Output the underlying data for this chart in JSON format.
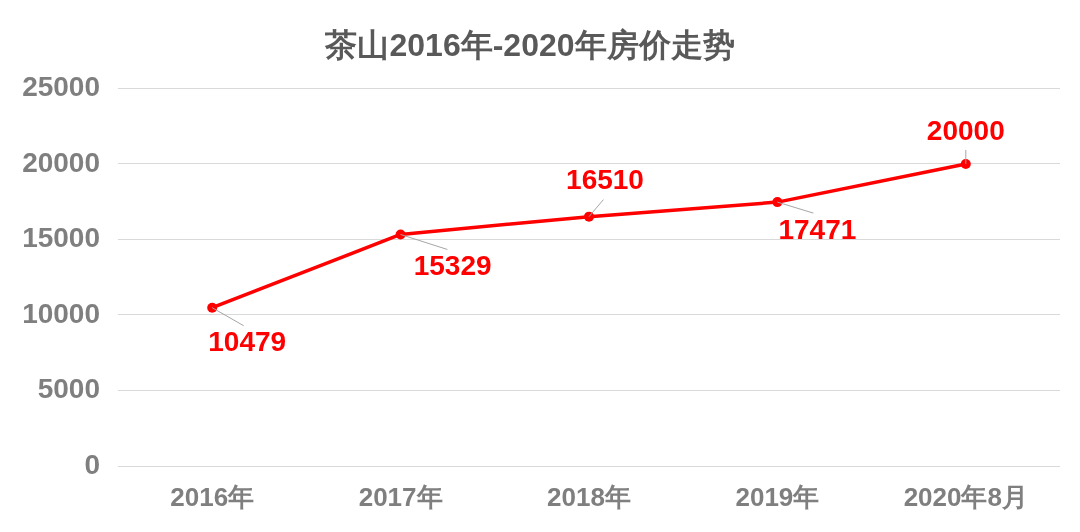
{
  "chart_data": {
    "type": "line",
    "title": "茶山2016年-2020年房价走势",
    "categories": [
      "2016年",
      "2017年",
      "2018年",
      "2019年",
      "2020年8月"
    ],
    "series": [
      {
        "color": "#ff0000",
        "values": [
          10479,
          15329,
          16510,
          17471,
          20000
        ]
      }
    ],
    "ylim": [
      0,
      25000
    ],
    "yticks": [
      0,
      5000,
      10000,
      15000,
      20000,
      25000
    ],
    "grid": "y",
    "marker": "circle",
    "line_style": "solid",
    "data_labels": true
  }
}
